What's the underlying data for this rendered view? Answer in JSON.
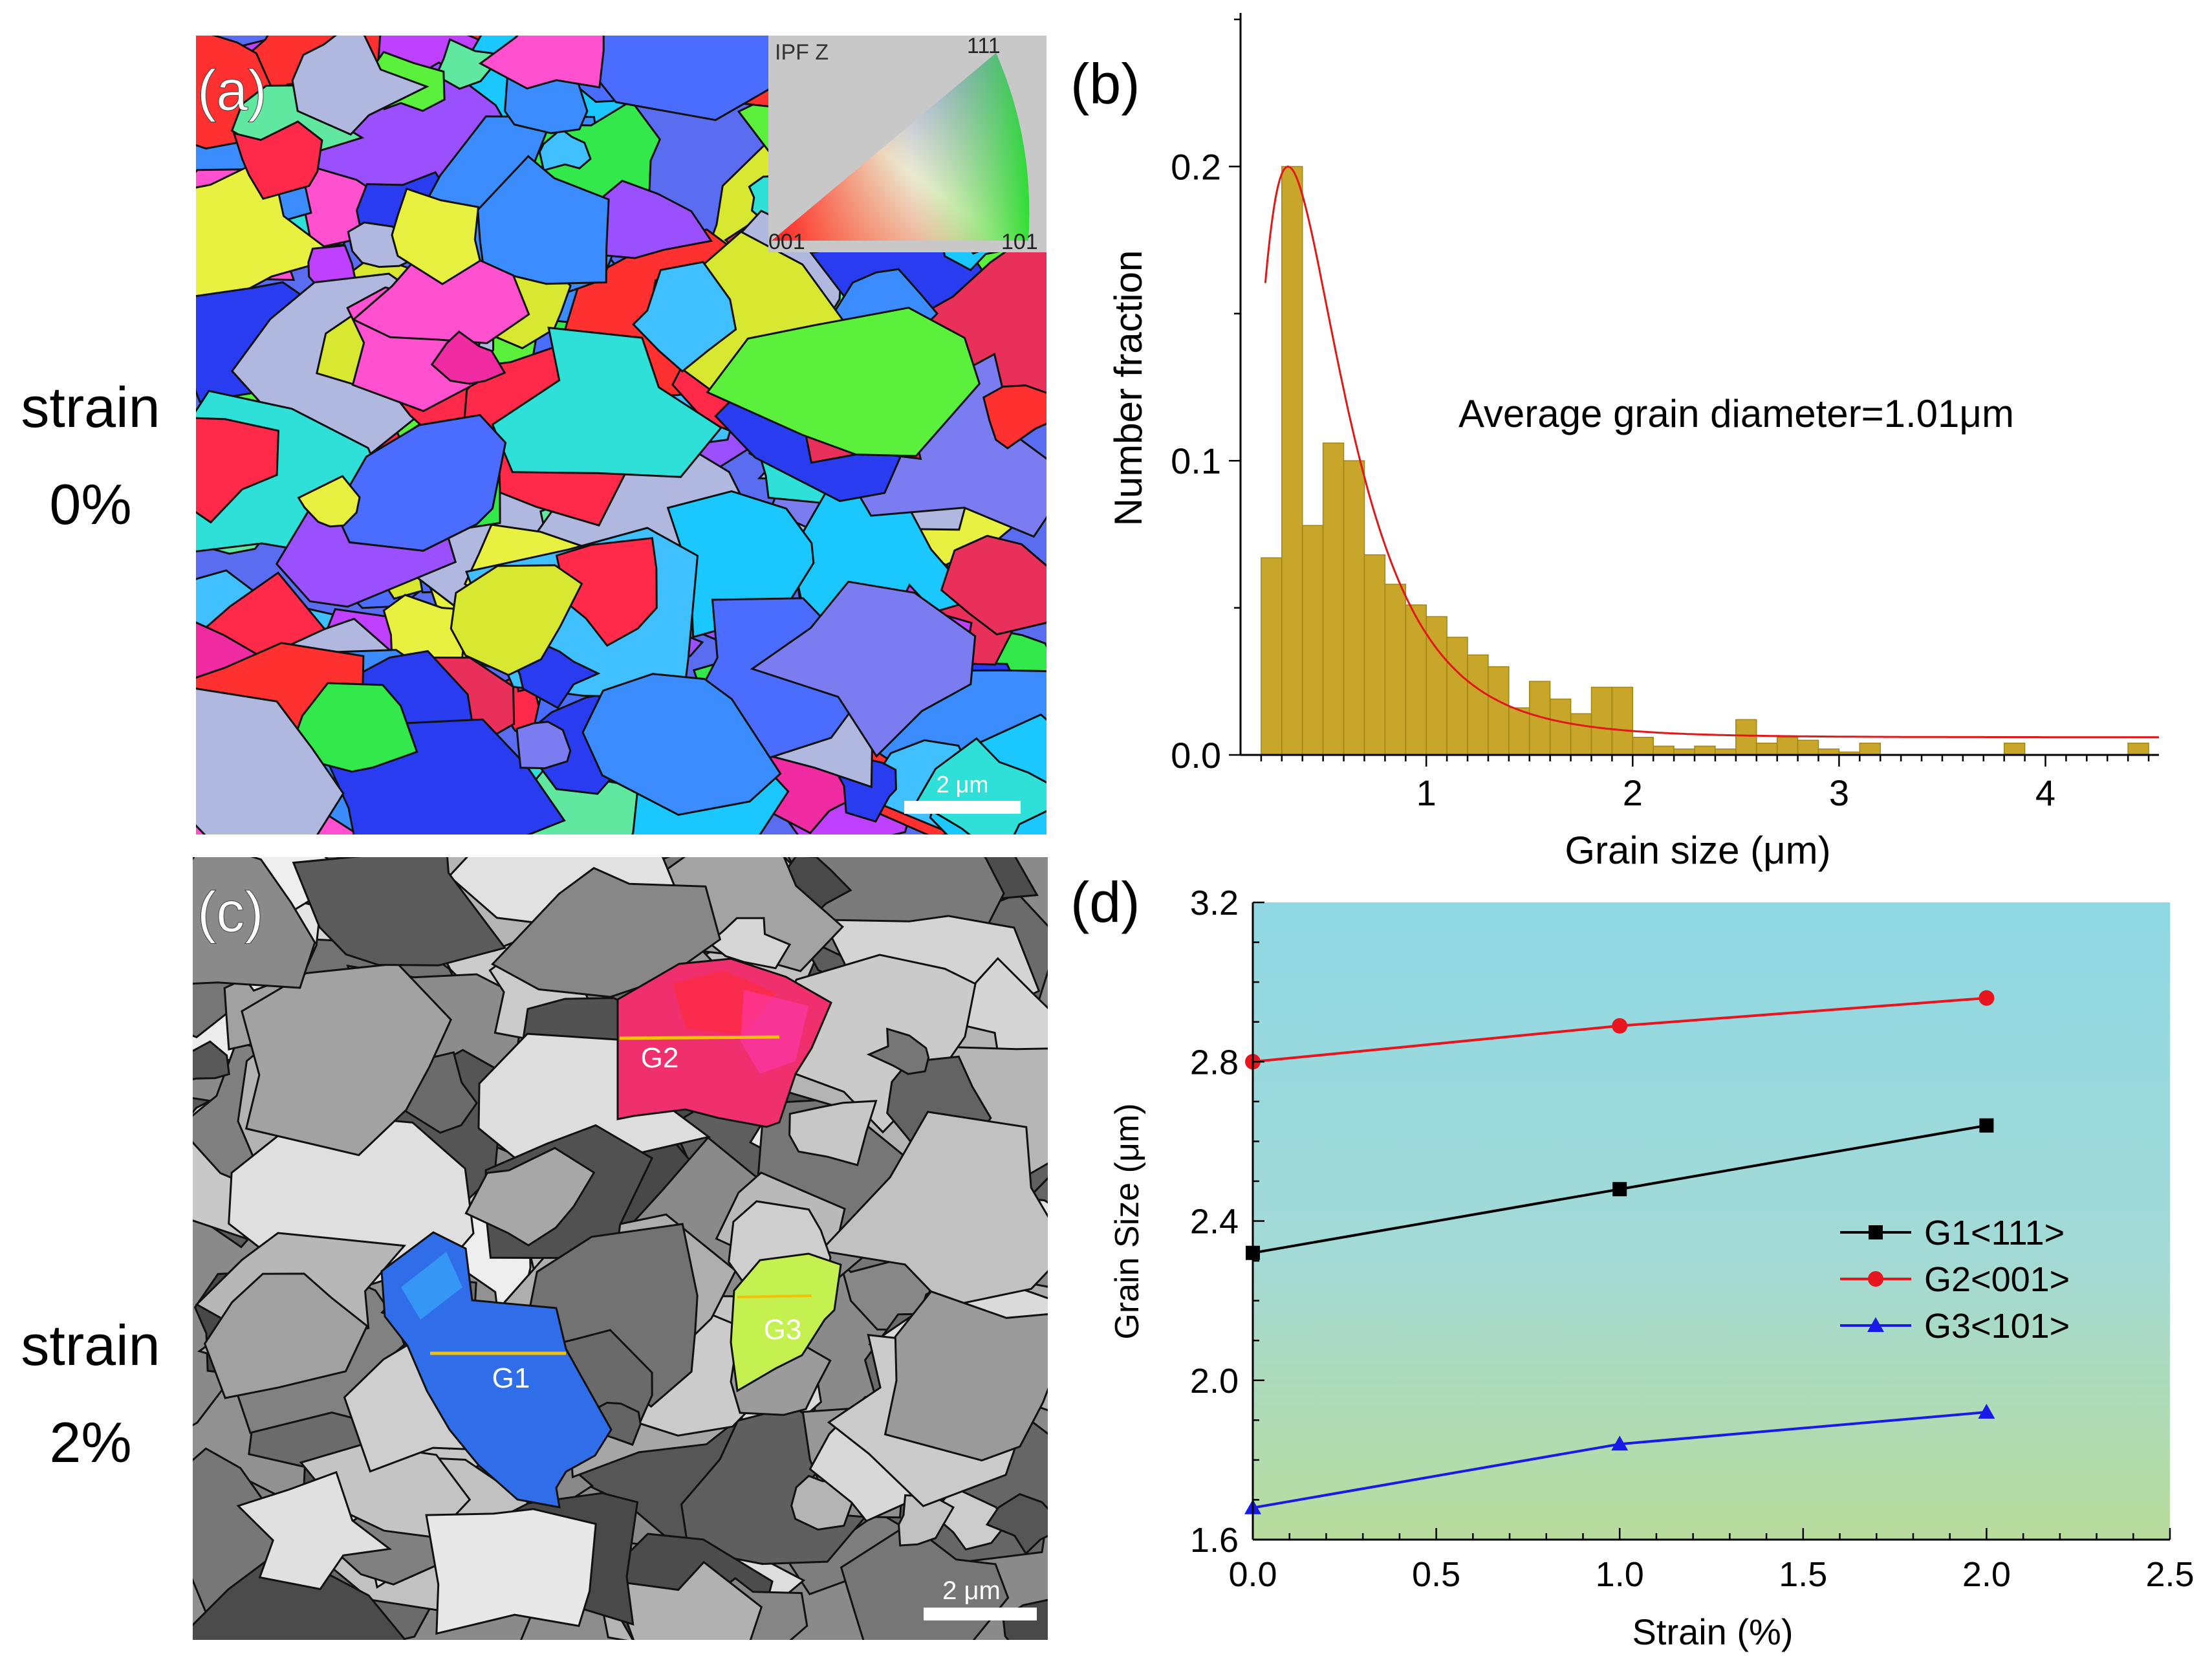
{
  "row_labels": {
    "top": {
      "line1": "strain",
      "line2": "0%"
    },
    "bottom": {
      "line1": "strain",
      "line2": "2%"
    }
  },
  "panel_a": {
    "letter": "(a)",
    "legend_title": "IPF Z",
    "legend_corners": {
      "top": "111",
      "left": "001",
      "right": "101"
    },
    "scalebar_label": "2 μm"
  },
  "panel_c": {
    "letter": "(c)",
    "grain_labels": [
      "G2",
      "G1",
      "G3"
    ],
    "scalebar_label": "2 μm",
    "grain_colors": {
      "G1": "#2f6ee8",
      "G2": "#f0306e",
      "G3": "#c4f050"
    }
  },
  "colors": {
    "bar": "#c8a62a",
    "fit": "#e01818",
    "g1": "#000000",
    "g2": "#e8141e",
    "g3": "#1a1ae8",
    "bg_top": "#8fd8e4",
    "bg_bottom": "#b8dc9c"
  },
  "chart_data": [
    {
      "panel": "(b)",
      "type": "bar",
      "annotation": "Average grain diameter=1.01μm",
      "xlabel": "Grain size (μm)",
      "ylabel": "Number fraction",
      "xlim": [
        0.1,
        4.55
      ],
      "ylim": [
        0,
        0.25
      ],
      "xticks": [
        1,
        2,
        3,
        4
      ],
      "yticks": [
        0.0,
        0.1,
        0.2
      ],
      "ytick_labels": [
        "0.0",
        "0.1",
        "0.2"
      ],
      "bin_width": 0.1,
      "bin_centers": [
        0.25,
        0.35,
        0.45,
        0.55,
        0.65,
        0.75,
        0.85,
        0.95,
        1.05,
        1.15,
        1.25,
        1.35,
        1.45,
        1.55,
        1.65,
        1.75,
        1.85,
        1.95,
        2.05,
        2.15,
        2.25,
        2.35,
        2.45,
        2.55,
        2.65,
        2.75,
        2.85,
        2.95,
        3.05,
        3.15,
        3.85,
        4.45
      ],
      "values": [
        0.067,
        0.2,
        0.078,
        0.106,
        0.1,
        0.068,
        0.058,
        0.051,
        0.047,
        0.04,
        0.034,
        0.03,
        0.016,
        0.025,
        0.019,
        0.014,
        0.023,
        0.023,
        0.006,
        0.003,
        0.002,
        0.003,
        0.002,
        0.012,
        0.004,
        0.006,
        0.005,
        0.002,
        0.001,
        0.004,
        0.004,
        0.004
      ],
      "fit": {
        "name": "lognormal fit",
        "peak_x": 0.33,
        "peak_y": 0.2,
        "start_x": 0.22,
        "baseline": 0.006
      }
    },
    {
      "panel": "(d)",
      "type": "line",
      "xlabel": "Strain (%)",
      "ylabel": "Grain Size (μm)",
      "xlim": [
        0,
        2.5
      ],
      "ylim": [
        1.6,
        3.2
      ],
      "xticks": [
        0.0,
        0.5,
        1.0,
        1.5,
        2.0,
        2.5
      ],
      "xtick_labels": [
        "0.0",
        "0.5",
        "1.0",
        "1.5",
        "2.0",
        "2.5"
      ],
      "yticks": [
        1.6,
        2.0,
        2.4,
        2.8,
        3.2
      ],
      "ytick_labels": [
        "1.6",
        "2.0",
        "2.4",
        "2.8",
        "3.2"
      ],
      "x": [
        0.0,
        1.0,
        2.0
      ],
      "series": [
        {
          "name": "G1<111>",
          "marker": "square",
          "values": [
            2.32,
            2.48,
            2.64
          ]
        },
        {
          "name": "G2<001>",
          "marker": "circle",
          "values": [
            2.8,
            2.89,
            2.96
          ]
        },
        {
          "name": "G3<101>",
          "marker": "triangle",
          "values": [
            1.68,
            1.84,
            1.92
          ]
        }
      ],
      "legend": "center-right"
    }
  ]
}
